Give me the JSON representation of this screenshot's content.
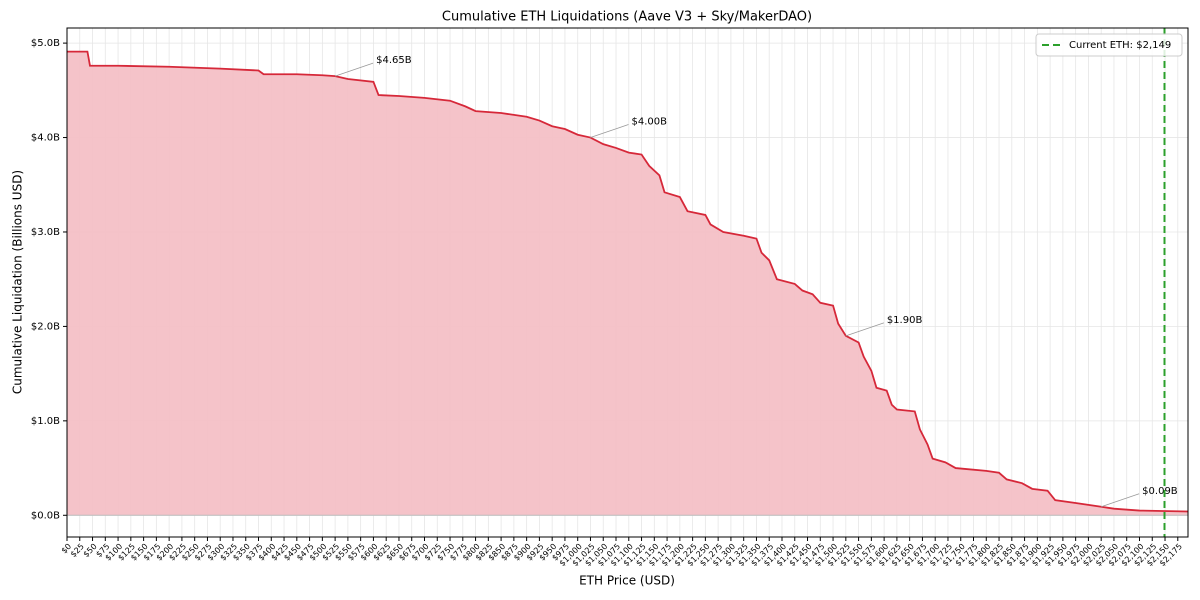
{
  "chart_data": {
    "type": "area",
    "title": "Cumulative ETH Liquidations (Aave V3 + Sky/MakerDAO)",
    "xlabel": "ETH Price (USD)",
    "ylabel": "Cumulative Liquidation (Billions USD)",
    "color": "#d62839",
    "fill_color": "#f4c0c6",
    "x": [
      0,
      40,
      45,
      100,
      200,
      300,
      375,
      385,
      450,
      500,
      525,
      550,
      600,
      610,
      650,
      700,
      750,
      780,
      800,
      850,
      900,
      925,
      950,
      975,
      1000,
      1025,
      1050,
      1075,
      1100,
      1125,
      1140,
      1160,
      1170,
      1200,
      1215,
      1250,
      1260,
      1285,
      1325,
      1350,
      1360,
      1375,
      1390,
      1425,
      1440,
      1460,
      1475,
      1500,
      1510,
      1525,
      1550,
      1560,
      1575,
      1585,
      1605,
      1615,
      1625,
      1660,
      1670,
      1685,
      1695,
      1720,
      1740,
      1800,
      1825,
      1840,
      1870,
      1890,
      1920,
      1935,
      1975,
      2000,
      2025,
      2050,
      2100,
      2195
    ],
    "values": [
      4.91,
      4.91,
      4.76,
      4.76,
      4.75,
      4.73,
      4.71,
      4.67,
      4.67,
      4.66,
      4.65,
      4.62,
      4.59,
      4.45,
      4.44,
      4.42,
      4.39,
      4.33,
      4.28,
      4.26,
      4.22,
      4.18,
      4.12,
      4.09,
      4.03,
      4.0,
      3.93,
      3.89,
      3.84,
      3.82,
      3.7,
      3.6,
      3.42,
      3.37,
      3.22,
      3.18,
      3.08,
      3.0,
      2.96,
      2.93,
      2.78,
      2.7,
      2.5,
      2.45,
      2.38,
      2.34,
      2.25,
      2.22,
      2.03,
      1.9,
      1.83,
      1.68,
      1.53,
      1.35,
      1.32,
      1.17,
      1.12,
      1.1,
      0.91,
      0.75,
      0.6,
      0.56,
      0.5,
      0.47,
      0.45,
      0.38,
      0.34,
      0.28,
      0.26,
      0.16,
      0.13,
      0.11,
      0.09,
      0.07,
      0.05,
      0.04
    ],
    "annotations": [
      {
        "text": "$4.65B",
        "x": 525,
        "y": 4.65
      },
      {
        "text": "$4.00B",
        "x": 1025,
        "y": 4.0
      },
      {
        "text": "$1.90B",
        "x": 1525,
        "y": 1.9
      },
      {
        "text": "$0.09B",
        "x": 2025,
        "y": 0.09
      }
    ],
    "vline": {
      "name": "Current ETH: $2,149",
      "x": 2149,
      "color": "#2ca02c"
    },
    "legend": "upper right",
    "grid": true,
    "xlim": [
      0,
      2195
    ],
    "ylim": [
      -0.23,
      5.16
    ],
    "yticks": [
      {
        "value": 0,
        "label": "$0.0B"
      },
      {
        "value": 1,
        "label": "$1.0B"
      },
      {
        "value": 2,
        "label": "$2.0B"
      },
      {
        "value": 3,
        "label": "$3.0B"
      },
      {
        "value": 4,
        "label": "$4.0B"
      },
      {
        "value": 5,
        "label": "$5.0B"
      }
    ],
    "xticks": [
      {
        "value": 0,
        "label": "$0"
      },
      {
        "value": 25,
        "label": "$25"
      },
      {
        "value": 50,
        "label": "$50"
      },
      {
        "value": 75,
        "label": "$75"
      },
      {
        "value": 100,
        "label": "$100"
      },
      {
        "value": 125,
        "label": "$125"
      },
      {
        "value": 150,
        "label": "$150"
      },
      {
        "value": 175,
        "label": "$175"
      },
      {
        "value": 200,
        "label": "$200"
      },
      {
        "value": 225,
        "label": "$225"
      },
      {
        "value": 250,
        "label": "$250"
      },
      {
        "value": 275,
        "label": "$275"
      },
      {
        "value": 300,
        "label": "$300"
      },
      {
        "value": 325,
        "label": "$325"
      },
      {
        "value": 350,
        "label": "$350"
      },
      {
        "value": 375,
        "label": "$375"
      },
      {
        "value": 400,
        "label": "$400"
      },
      {
        "value": 425,
        "label": "$425"
      },
      {
        "value": 450,
        "label": "$450"
      },
      {
        "value": 475,
        "label": "$475"
      },
      {
        "value": 500,
        "label": "$500"
      },
      {
        "value": 525,
        "label": "$525"
      },
      {
        "value": 550,
        "label": "$550"
      },
      {
        "value": 575,
        "label": "$575"
      },
      {
        "value": 600,
        "label": "$600"
      },
      {
        "value": 625,
        "label": "$625"
      },
      {
        "value": 650,
        "label": "$650"
      },
      {
        "value": 675,
        "label": "$675"
      },
      {
        "value": 700,
        "label": "$700"
      },
      {
        "value": 725,
        "label": "$725"
      },
      {
        "value": 750,
        "label": "$750"
      },
      {
        "value": 775,
        "label": "$775"
      },
      {
        "value": 800,
        "label": "$800"
      },
      {
        "value": 825,
        "label": "$825"
      },
      {
        "value": 850,
        "label": "$850"
      },
      {
        "value": 875,
        "label": "$875"
      },
      {
        "value": 900,
        "label": "$900"
      },
      {
        "value": 925,
        "label": "$925"
      },
      {
        "value": 950,
        "label": "$950"
      },
      {
        "value": 975,
        "label": "$975"
      },
      {
        "value": 1000,
        "label": "$1,000"
      },
      {
        "value": 1025,
        "label": "$1,025"
      },
      {
        "value": 1050,
        "label": "$1,050"
      },
      {
        "value": 1075,
        "label": "$1,075"
      },
      {
        "value": 1100,
        "label": "$1,100"
      },
      {
        "value": 1125,
        "label": "$1,125"
      },
      {
        "value": 1150,
        "label": "$1,150"
      },
      {
        "value": 1175,
        "label": "$1,175"
      },
      {
        "value": 1200,
        "label": "$1,200"
      },
      {
        "value": 1225,
        "label": "$1,225"
      },
      {
        "value": 1250,
        "label": "$1,250"
      },
      {
        "value": 1275,
        "label": "$1,275"
      },
      {
        "value": 1300,
        "label": "$1,300"
      },
      {
        "value": 1325,
        "label": "$1,325"
      },
      {
        "value": 1350,
        "label": "$1,350"
      },
      {
        "value": 1375,
        "label": "$1,375"
      },
      {
        "value": 1400,
        "label": "$1,400"
      },
      {
        "value": 1425,
        "label": "$1,425"
      },
      {
        "value": 1450,
        "label": "$1,450"
      },
      {
        "value": 1475,
        "label": "$1,475"
      },
      {
        "value": 1500,
        "label": "$1,500"
      },
      {
        "value": 1525,
        "label": "$1,525"
      },
      {
        "value": 1550,
        "label": "$1,550"
      },
      {
        "value": 1575,
        "label": "$1,575"
      },
      {
        "value": 1600,
        "label": "$1,600"
      },
      {
        "value": 1625,
        "label": "$1,625"
      },
      {
        "value": 1650,
        "label": "$1,650"
      },
      {
        "value": 1675,
        "label": "$1,675"
      },
      {
        "value": 1700,
        "label": "$1,700"
      },
      {
        "value": 1725,
        "label": "$1,725"
      },
      {
        "value": 1750,
        "label": "$1,750"
      },
      {
        "value": 1775,
        "label": "$1,775"
      },
      {
        "value": 1800,
        "label": "$1,800"
      },
      {
        "value": 1825,
        "label": "$1,825"
      },
      {
        "value": 1850,
        "label": "$1,850"
      },
      {
        "value": 1875,
        "label": "$1,875"
      },
      {
        "value": 1900,
        "label": "$1,900"
      },
      {
        "value": 1925,
        "label": "$1,925"
      },
      {
        "value": 1950,
        "label": "$1,950"
      },
      {
        "value": 1975,
        "label": "$1,975"
      },
      {
        "value": 2000,
        "label": "$2,000"
      },
      {
        "value": 2025,
        "label": "$2,025"
      },
      {
        "value": 2050,
        "label": "$2,050"
      },
      {
        "value": 2075,
        "label": "$2,075"
      },
      {
        "value": 2100,
        "label": "$2,100"
      },
      {
        "value": 2125,
        "label": "$2,125"
      },
      {
        "value": 2150,
        "label": "$2,150"
      },
      {
        "value": 2175,
        "label": "$2,175"
      }
    ]
  }
}
